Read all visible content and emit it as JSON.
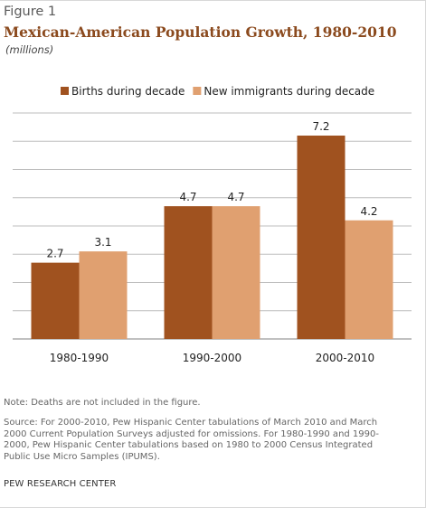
{
  "figure_label": "Figure 1",
  "chart_data": {
    "type": "bar",
    "title": "Mexican-American Population Growth, 1980-2010",
    "subtitle": "(millions)",
    "categories": [
      "1980-1990",
      "1990-2000",
      "2000-2010"
    ],
    "series": [
      {
        "name": "Births during decade",
        "values": [
          2.7,
          4.7,
          7.2
        ],
        "color": "#a0521f"
      },
      {
        "name": "New immigrants during decade",
        "values": [
          3.1,
          4.7,
          4.2
        ],
        "color": "#e0a070"
      }
    ],
    "data_labels": [
      [
        "2.7",
        "4.7",
        "7.2"
      ],
      [
        "3.1",
        "4.7",
        "4.2"
      ]
    ],
    "ylim": [
      0,
      8
    ],
    "grid": true,
    "legend": "top-center"
  },
  "note": "Note: Deaths are not included in the figure.",
  "source_lines": [
    "Source: For 2000-2010, Pew Hispanic Center tabulations of March 2010 and March",
    "2000 Current Population Surveys adjusted for omissions. For 1980-1990 and 1990-",
    "2000, Pew Hispanic Center tabulations based on 1980 to 2000 Census Integrated",
    "Public Use Micro Samples (IPUMS)."
  ],
  "credit": "PEW RESEARCH CENTER"
}
